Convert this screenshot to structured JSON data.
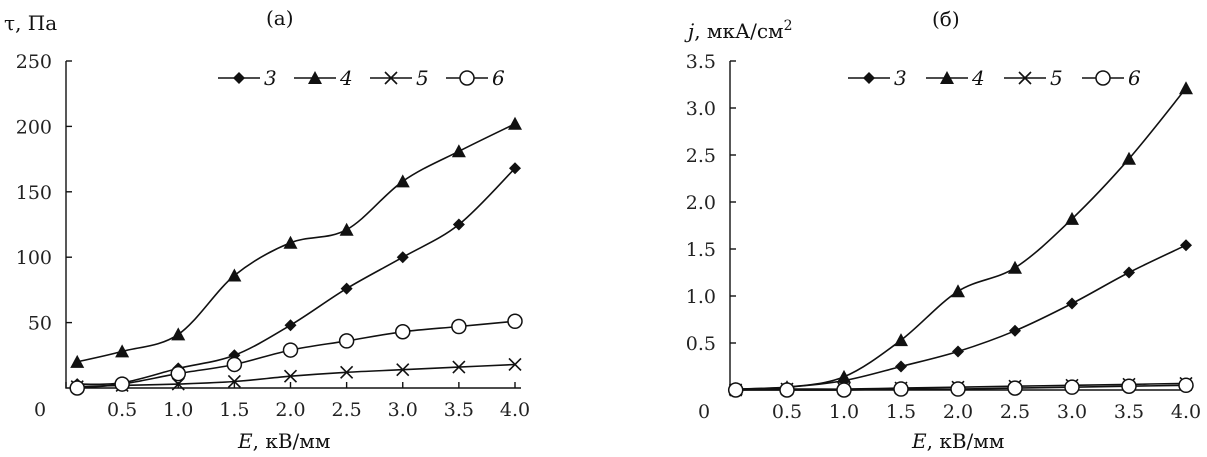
{
  "chart_data": [
    {
      "type": "line",
      "panel_label": "(а)",
      "ylabel_symbol": "τ",
      "ylabel_unit": ", Па",
      "xlabel_symbol": "E",
      "xlabel_unit": ", кВ/мм",
      "xlim": [
        0,
        4.0
      ],
      "ylim": [
        0,
        250
      ],
      "xticks": [
        "0",
        "0.5",
        "1.0",
        "1.5",
        "2.0",
        "2.5",
        "3.0",
        "3.5",
        "4.0"
      ],
      "xtick_values": [
        0,
        0.5,
        1.0,
        1.5,
        2.0,
        2.5,
        3.0,
        3.5,
        4.0
      ],
      "yticks": [
        "50",
        "100",
        "150",
        "200",
        "250"
      ],
      "ytick_values": [
        50,
        100,
        150,
        200,
        250
      ],
      "legend_position": "top-right",
      "series": [
        {
          "name": "3",
          "marker": "diamond",
          "x": [
            0.1,
            0.5,
            1.0,
            1.5,
            2.0,
            2.5,
            3.0,
            3.5,
            4.0
          ],
          "y": [
            3,
            4,
            15,
            25,
            48,
            76,
            100,
            125,
            168
          ]
        },
        {
          "name": "4",
          "marker": "triangle",
          "x": [
            0.1,
            0.5,
            1.0,
            1.5,
            2.0,
            2.5,
            3.0,
            3.5,
            4.0
          ],
          "y": [
            20,
            28,
            41,
            86,
            111,
            121,
            158,
            181,
            202
          ]
        },
        {
          "name": "5",
          "marker": "x",
          "x": [
            0.1,
            0.5,
            1.0,
            1.5,
            2.0,
            2.5,
            3.0,
            3.5,
            4.0
          ],
          "y": [
            1,
            2,
            3,
            5,
            9,
            12,
            14,
            16,
            18
          ]
        },
        {
          "name": "6",
          "marker": "circle",
          "x": [
            0.1,
            0.5,
            1.0,
            1.5,
            2.0,
            2.5,
            3.0,
            3.5,
            4.0
          ],
          "y": [
            0,
            3,
            11,
            18,
            29,
            36,
            43,
            47,
            51
          ]
        }
      ]
    },
    {
      "type": "line",
      "panel_label": "(б)",
      "ylabel_symbol": "j",
      "ylabel_unit": ", мкА/см",
      "ylabel_sup": "2",
      "xlabel_symbol": "E",
      "xlabel_unit": ", кВ/мм",
      "xlim": [
        0,
        4.0
      ],
      "ylim": [
        0,
        3.5
      ],
      "xticks": [
        "0",
        "0.5",
        "1.0",
        "1.5",
        "2.0",
        "2.5",
        "3.0",
        "3.5",
        "4.0"
      ],
      "xtick_values": [
        0,
        0.5,
        1.0,
        1.5,
        2.0,
        2.5,
        3.0,
        3.5,
        4.0
      ],
      "yticks": [
        "0.5",
        "1.0",
        "1.5",
        "2.0",
        "2.5",
        "3.0",
        "3.5"
      ],
      "ytick_values": [
        0.5,
        1.0,
        1.5,
        2.0,
        2.5,
        3.0,
        3.5
      ],
      "legend_position": "top-right",
      "series": [
        {
          "name": "3",
          "marker": "diamond",
          "x": [
            0.05,
            0.5,
            1.0,
            1.5,
            2.0,
            2.5,
            3.0,
            3.5,
            4.0
          ],
          "y": [
            0.01,
            0.03,
            0.1,
            0.25,
            0.41,
            0.63,
            0.92,
            1.25,
            1.54
          ]
        },
        {
          "name": "4",
          "marker": "triangle",
          "x": [
            0.05,
            0.5,
            1.0,
            1.5,
            2.0,
            2.5,
            3.0,
            3.5,
            4.0
          ],
          "y": [
            0.01,
            0.03,
            0.14,
            0.53,
            1.05,
            1.3,
            1.82,
            2.46,
            3.21
          ]
        },
        {
          "name": "5",
          "marker": "x",
          "x": [
            0.05,
            0.5,
            1.0,
            1.5,
            2.0,
            2.5,
            3.0,
            3.5,
            4.0
          ],
          "y": [
            0.0,
            0.01,
            0.01,
            0.02,
            0.03,
            0.04,
            0.05,
            0.06,
            0.07
          ]
        },
        {
          "name": "6",
          "marker": "circle",
          "x": [
            0.05,
            0.5,
            1.0,
            1.5,
            2.0,
            2.5,
            3.0,
            3.5,
            4.0
          ],
          "y": [
            0.0,
            0.0,
            0.0,
            0.01,
            0.01,
            0.02,
            0.03,
            0.04,
            0.05
          ]
        }
      ]
    }
  ]
}
